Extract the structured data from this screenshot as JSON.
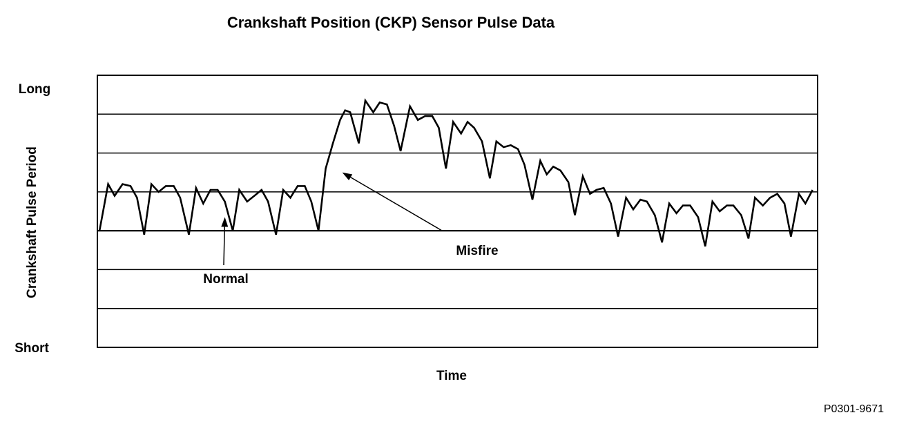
{
  "chart_data": {
    "type": "line",
    "title": "Crankshaft Position (CKP) Sensor Pulse Data",
    "xlabel": "Time",
    "ylabel": "Crankshaft Pulse Period",
    "y_top_label": "Long",
    "y_bottom_label": "Short",
    "xlim": [
      0,
      1
    ],
    "ylim": [
      0,
      7
    ],
    "grid": true,
    "grid_lines": [
      1,
      2,
      3,
      4,
      5,
      6
    ],
    "annotations": [
      {
        "text": "Normal",
        "arrow_to": [
          0.177,
          3.35
        ]
      },
      {
        "text": "Misfire",
        "arrow_to": [
          0.34,
          4.5
        ]
      }
    ],
    "series": [
      {
        "x": [
          0.003,
          0.015,
          0.024,
          0.035,
          0.046,
          0.055,
          0.065,
          0.075,
          0.085,
          0.095,
          0.106,
          0.115,
          0.127,
          0.137,
          0.147,
          0.157,
          0.167,
          0.177,
          0.188,
          0.197,
          0.208,
          0.218,
          0.228,
          0.237,
          0.248,
          0.258,
          0.268,
          0.278,
          0.288,
          0.297,
          0.307,
          0.317,
          0.327,
          0.337,
          0.344,
          0.351,
          0.363,
          0.372,
          0.383,
          0.392,
          0.402,
          0.412,
          0.421,
          0.434,
          0.445,
          0.455,
          0.465,
          0.474,
          0.484,
          0.494,
          0.505,
          0.514,
          0.523,
          0.534,
          0.545,
          0.554,
          0.564,
          0.574,
          0.584,
          0.593,
          0.604,
          0.615,
          0.624,
          0.633,
          0.643,
          0.654,
          0.663,
          0.674,
          0.684,
          0.693,
          0.703,
          0.713,
          0.723,
          0.734,
          0.744,
          0.754,
          0.763,
          0.774,
          0.784,
          0.794,
          0.804,
          0.813,
          0.823,
          0.834,
          0.844,
          0.854,
          0.864,
          0.874,
          0.883,
          0.894,
          0.904,
          0.913,
          0.924,
          0.934,
          0.944,
          0.954,
          0.963,
          0.974,
          0.983,
          0.993
        ],
        "values": [
          3.0,
          4.2,
          3.9,
          4.2,
          4.15,
          3.85,
          2.9,
          4.2,
          4.0,
          4.15,
          4.15,
          3.85,
          2.9,
          4.1,
          3.7,
          4.05,
          4.05,
          3.75,
          3.0,
          4.05,
          3.75,
          3.9,
          4.05,
          3.75,
          2.9,
          4.05,
          3.85,
          4.15,
          4.15,
          3.75,
          3.0,
          4.6,
          5.25,
          5.85,
          6.1,
          6.05,
          5.25,
          6.35,
          6.05,
          6.3,
          6.25,
          5.7,
          5.05,
          6.2,
          5.85,
          5.95,
          5.95,
          5.65,
          4.6,
          5.8,
          5.5,
          5.8,
          5.65,
          5.3,
          4.35,
          5.3,
          5.15,
          5.2,
          5.1,
          4.7,
          3.8,
          4.8,
          4.45,
          4.65,
          4.55,
          4.25,
          3.4,
          4.4,
          3.95,
          4.05,
          4.1,
          3.7,
          2.85,
          3.85,
          3.55,
          3.8,
          3.75,
          3.4,
          2.7,
          3.7,
          3.45,
          3.65,
          3.65,
          3.35,
          2.6,
          3.75,
          3.5,
          3.65,
          3.65,
          3.4,
          2.8,
          3.85,
          3.65,
          3.85,
          3.95,
          3.7,
          2.85,
          3.95,
          3.7,
          4.05
        ]
      }
    ]
  },
  "figure_id": "P0301-9671"
}
